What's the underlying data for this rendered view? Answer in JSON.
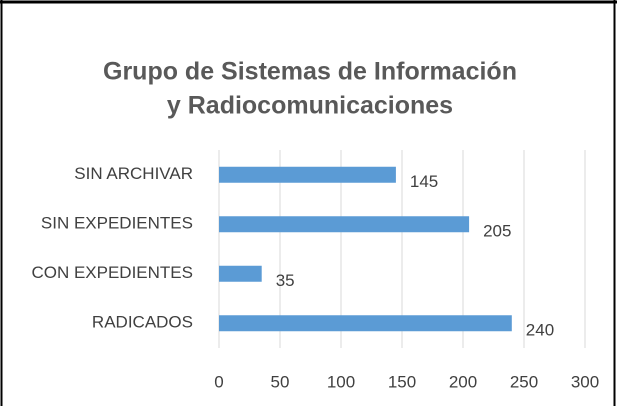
{
  "chart_data": {
    "type": "bar",
    "orientation": "horizontal",
    "title": [
      "Grupo de Sistemas de Información",
      "y Radiocomunicaciones"
    ],
    "categories": [
      "SIN ARCHIVAR",
      "SIN EXPEDIENTES",
      "CON EXPEDIENTES",
      "RADICADOS"
    ],
    "values": [
      145,
      205,
      35,
      240
    ],
    "color": "#5b9bd5",
    "xlim": [
      0,
      300
    ],
    "xticks": [
      0,
      50,
      100,
      150,
      200,
      250,
      300
    ],
    "grid": true
  }
}
